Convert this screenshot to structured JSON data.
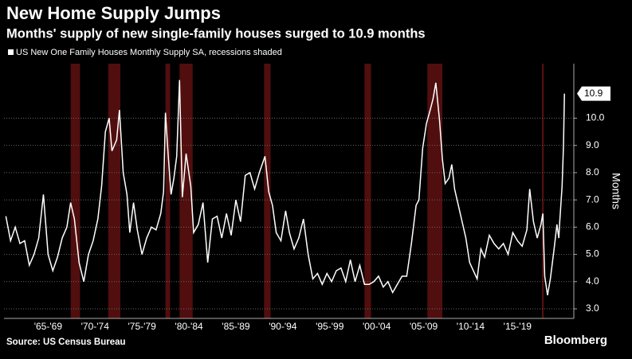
{
  "chart_data": {
    "type": "line",
    "title": "New Home Supply Jumps",
    "subtitle": "Months' supply of new single-family houses surged to 10.9 months",
    "y_axis_label": "Months",
    "source": "Source: US Census Bureau",
    "brand": "Bloomberg",
    "recession_note": "recessions shaded",
    "x": [
      1963.0,
      1963.5,
      1964.0,
      1964.5,
      1965.0,
      1965.5,
      1966.0,
      1966.5,
      1967.0,
      1967.5,
      1968.0,
      1968.5,
      1969.0,
      1969.5,
      1969.9,
      1970.3,
      1970.8,
      1971.3,
      1971.8,
      1972.3,
      1972.8,
      1973.2,
      1973.6,
      1974.0,
      1974.3,
      1974.8,
      1975.1,
      1975.5,
      1975.9,
      1976.2,
      1976.6,
      1977.0,
      1977.5,
      1978.0,
      1978.5,
      1979.0,
      1979.5,
      1979.8,
      1980.0,
      1980.3,
      1980.6,
      1980.9,
      1981.2,
      1981.5,
      1981.8,
      1982.2,
      1982.7,
      1983.0,
      1983.5,
      1984.0,
      1984.5,
      1985.0,
      1985.5,
      1986.0,
      1986.5,
      1987.0,
      1987.5,
      1988.0,
      1988.5,
      1989.0,
      1989.5,
      1990.0,
      1990.6,
      1991.0,
      1991.4,
      1991.8,
      1992.3,
      1992.8,
      1993.2,
      1993.7,
      1994.2,
      1994.7,
      1995.2,
      1995.7,
      1996.2,
      1996.7,
      1997.2,
      1997.7,
      1998.2,
      1998.7,
      1999.2,
      1999.7,
      2000.2,
      2000.7,
      2001.2,
      2001.7,
      2002.2,
      2002.7,
      2003.2,
      2003.7,
      2004.2,
      2004.7,
      2005.2,
      2005.7,
      2006.2,
      2006.7,
      2007.0,
      2007.4,
      2007.8,
      2008.2,
      2008.5,
      2008.8,
      2009.2,
      2009.5,
      2009.8,
      2010.2,
      2010.5,
      2010.8,
      2011.2,
      2011.6,
      2012.0,
      2012.4,
      2012.8,
      2013.2,
      2013.6,
      2014.0,
      2014.5,
      2015.0,
      2015.5,
      2016.0,
      2016.5,
      2017.0,
      2017.5,
      2018.0,
      2018.5,
      2018.8,
      2019.2,
      2019.6,
      2020.0,
      2020.2,
      2020.4,
      2020.7,
      2021.0,
      2021.4,
      2021.7,
      2021.9,
      2022.0,
      2022.25,
      2022.4,
      2022.5
    ],
    "series": [
      {
        "name": "US New One Family Houses Monthly Supply SA",
        "color": "#ffffff",
        "values": [
          6.4,
          5.5,
          6.0,
          5.4,
          5.5,
          4.6,
          5.0,
          5.6,
          7.2,
          5.0,
          4.4,
          4.9,
          5.6,
          6.0,
          6.9,
          6.3,
          4.7,
          4.0,
          5.0,
          5.5,
          6.3,
          7.5,
          9.5,
          10.0,
          8.8,
          9.2,
          10.3,
          8.0,
          7.2,
          5.8,
          6.9,
          5.9,
          5.0,
          5.6,
          6.0,
          5.9,
          6.5,
          7.3,
          10.2,
          8.6,
          7.2,
          7.8,
          8.6,
          11.4,
          7.1,
          8.7,
          7.5,
          5.8,
          6.1,
          6.9,
          4.7,
          6.3,
          6.4,
          5.6,
          6.5,
          5.7,
          7.0,
          6.2,
          7.9,
          8.0,
          7.4,
          8.0,
          8.6,
          7.3,
          6.8,
          5.8,
          5.5,
          6.6,
          5.8,
          5.2,
          5.6,
          6.3,
          5.0,
          4.1,
          4.3,
          3.9,
          4.3,
          4.0,
          4.4,
          4.5,
          4.0,
          4.8,
          4.0,
          4.6,
          3.9,
          3.9,
          4.0,
          4.2,
          3.8,
          4.0,
          3.6,
          3.9,
          4.2,
          4.2,
          5.4,
          6.8,
          7.0,
          8.9,
          9.8,
          10.3,
          10.7,
          11.3,
          9.9,
          8.5,
          7.6,
          7.8,
          8.3,
          7.4,
          6.8,
          6.2,
          5.6,
          4.7,
          4.4,
          4.1,
          5.2,
          4.9,
          5.7,
          5.4,
          5.2,
          5.4,
          5.0,
          5.8,
          5.5,
          5.3,
          5.9,
          7.4,
          6.2,
          5.6,
          6.1,
          6.5,
          4.2,
          3.5,
          4.1,
          5.2,
          6.1,
          5.6,
          6.2,
          7.5,
          9.0,
          10.9
        ]
      }
    ],
    "recessions": [
      [
        1969.9,
        1970.9
      ],
      [
        1973.9,
        1975.2
      ],
      [
        1980.0,
        1980.5
      ],
      [
        1981.5,
        1982.9
      ],
      [
        1990.5,
        1991.2
      ],
      [
        2001.2,
        2001.9
      ],
      [
        2007.9,
        2009.5
      ],
      [
        2020.1,
        2020.3
      ]
    ],
    "recession_color": "#5a1010",
    "xlim": [
      1962.8,
      2023.5
    ],
    "xticks": [
      {
        "value": 1967.5,
        "label": "'65-'69"
      },
      {
        "value": 1972.5,
        "label": "'70-'74"
      },
      {
        "value": 1977.5,
        "label": "'75-'79"
      },
      {
        "value": 1982.5,
        "label": "'80-'84"
      },
      {
        "value": 1987.5,
        "label": "'85-'89"
      },
      {
        "value": 1992.5,
        "label": "'90-'94"
      },
      {
        "value": 1997.5,
        "label": "'95-'99"
      },
      {
        "value": 2002.5,
        "label": "'00-'04"
      },
      {
        "value": 2007.5,
        "label": "'05-'09"
      },
      {
        "value": 2012.5,
        "label": "'10-'14"
      },
      {
        "value": 2017.5,
        "label": "'15-'19"
      }
    ],
    "ylim": [
      2.65,
      12.0
    ],
    "yticks": [
      {
        "value": 3,
        "label": "3.0"
      },
      {
        "value": 4,
        "label": "4.0"
      },
      {
        "value": 5,
        "label": "5.0"
      },
      {
        "value": 6,
        "label": "6.0"
      },
      {
        "value": 7,
        "label": "7.0"
      },
      {
        "value": 8,
        "label": "8.0"
      },
      {
        "value": 9,
        "label": "9.0"
      },
      {
        "value": 10,
        "label": "10.0"
      }
    ],
    "grid": true
  }
}
